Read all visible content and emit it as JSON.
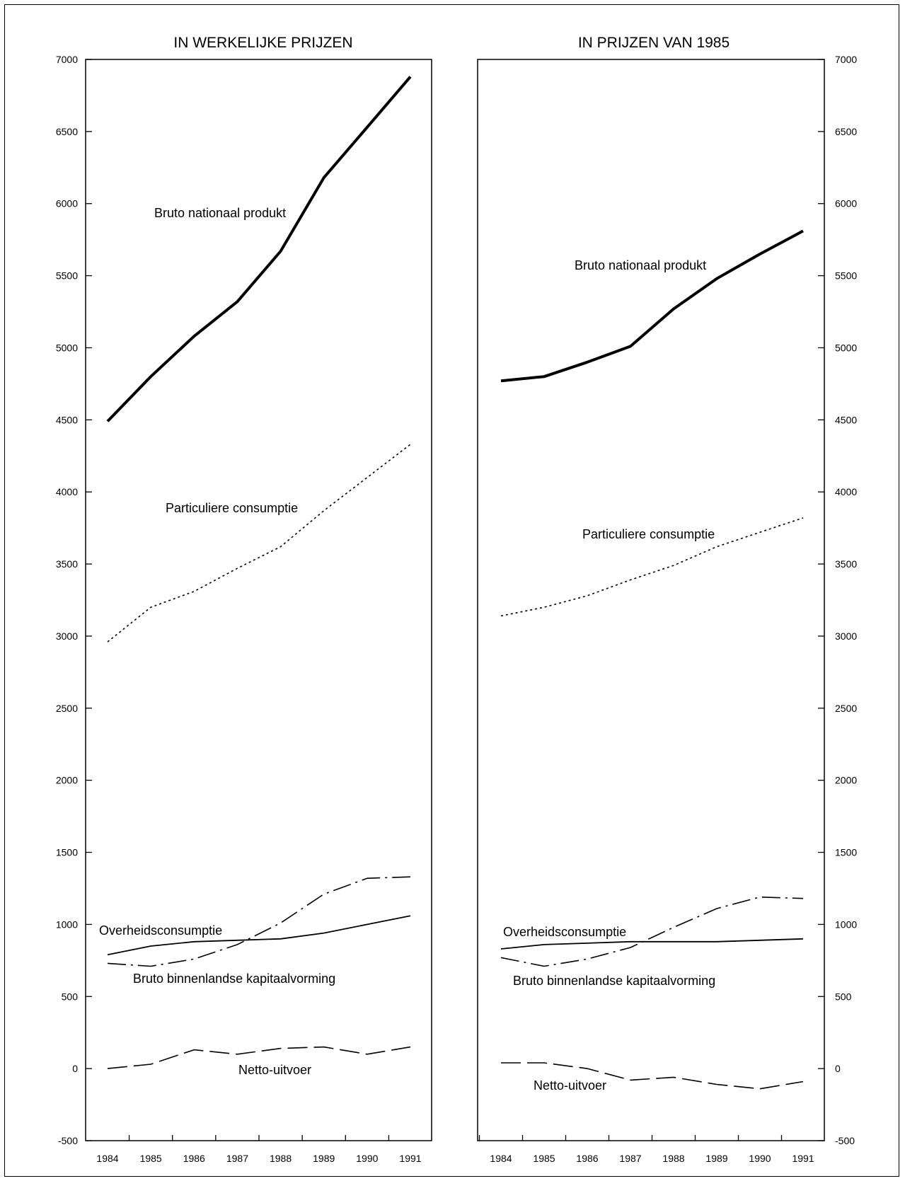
{
  "chart_data": [
    {
      "type": "line",
      "title": "IN WERKELIJKE PRIJZEN",
      "xlabel": "",
      "ylabel": "",
      "x": [
        "1984",
        "1985",
        "1986",
        "1987",
        "1988",
        "1989",
        "1990",
        "1991"
      ],
      "ylim": [
        -500,
        7000
      ],
      "yticks": [
        "7000",
        "6500",
        "6000",
        "5500",
        "5000",
        "4500",
        "4000",
        "3500",
        "3000",
        "2500",
        "2000",
        "1500",
        "1000",
        "500",
        "0",
        "-500"
      ],
      "grid": false,
      "axis_side": "left",
      "series": [
        {
          "name": "Bruto nationaal produkt",
          "style": "thick",
          "values": [
            4490,
            4800,
            5080,
            5320,
            5670,
            6180,
            6530,
            6880
          ]
        },
        {
          "name": "Particuliere consumptie",
          "style": "dotted",
          "values": [
            2960,
            3200,
            3310,
            3470,
            3620,
            3870,
            4100,
            4330
          ]
        },
        {
          "name": "Overheidsconsumptie",
          "style": "solid",
          "values": [
            790,
            850,
            880,
            890,
            900,
            940,
            1000,
            1060
          ]
        },
        {
          "name": "Bruto binnenlandse kapitaalvorming",
          "style": "dashdot",
          "values": [
            730,
            710,
            760,
            860,
            1010,
            1210,
            1320,
            1330
          ]
        },
        {
          "name": "Netto-uitvoer",
          "style": "dashed",
          "values": [
            0,
            30,
            130,
            100,
            140,
            150,
            100,
            150
          ]
        }
      ]
    },
    {
      "type": "line",
      "title": "IN PRIJZEN VAN 1985",
      "xlabel": "",
      "ylabel": "",
      "x": [
        "1984",
        "1985",
        "1986",
        "1987",
        "1988",
        "1989",
        "1990",
        "1991"
      ],
      "ylim": [
        -500,
        7000
      ],
      "yticks": [
        "7000",
        "6500",
        "6000",
        "5500",
        "5000",
        "4500",
        "4000",
        "3500",
        "3000",
        "2500",
        "2000",
        "1500",
        "1000",
        "500",
        "0",
        "-500"
      ],
      "grid": false,
      "axis_side": "right",
      "series": [
        {
          "name": "Bruto nationaal produkt",
          "style": "thick",
          "values": [
            4770,
            4800,
            4900,
            5010,
            5270,
            5480,
            5650,
            5810
          ]
        },
        {
          "name": "Particuliere consumptie",
          "style": "dotted",
          "values": [
            3140,
            3200,
            3280,
            3390,
            3490,
            3620,
            3720,
            3820
          ]
        },
        {
          "name": "Overheidsconsumptie",
          "style": "solid",
          "values": [
            830,
            860,
            870,
            880,
            880,
            880,
            890,
            900
          ]
        },
        {
          "name": "Bruto binnenlandse kapitaalvorming",
          "style": "dashdot",
          "values": [
            770,
            710,
            760,
            840,
            980,
            1110,
            1190,
            1180
          ]
        },
        {
          "name": "Netto-uitvoer",
          "style": "dashed",
          "values": [
            40,
            40,
            0,
            -80,
            -60,
            -110,
            -140,
            -90
          ]
        }
      ]
    }
  ]
}
